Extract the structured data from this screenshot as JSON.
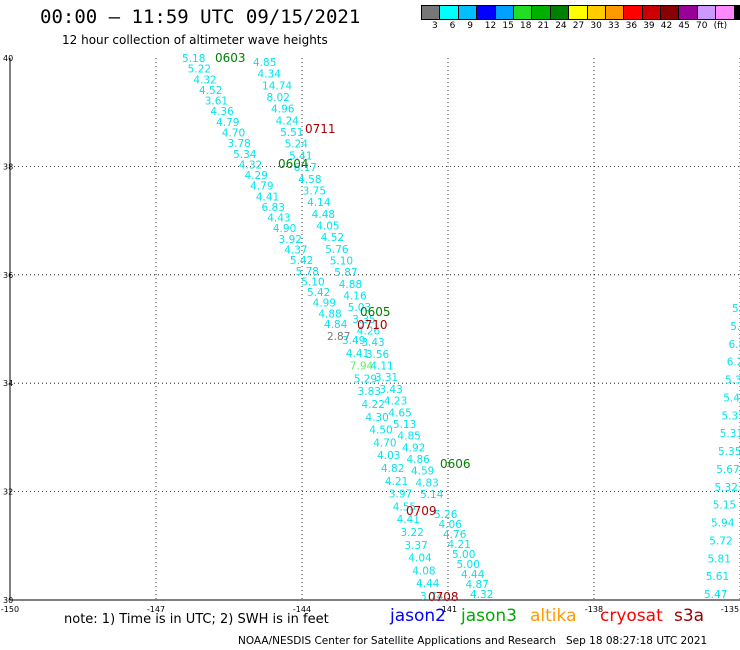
{
  "header": {
    "title": "00:00 – 11:59 UTC 09/15/2021",
    "subtitle": "12 hour collection of altimeter wave heights"
  },
  "color_scale": {
    "colors": [
      "#777777",
      "#00ffff",
      "#00bfff",
      "#0000ff",
      "#00a0ff",
      "#22dd22",
      "#00b000",
      "#008000",
      "#ffff00",
      "#ffcc00",
      "#ff9900",
      "#ff0000",
      "#cc0000",
      "#880000",
      "#990099",
      "#cc99ff",
      "#ff88ff",
      "#000000"
    ],
    "labels": [
      "3",
      "6",
      "9",
      "12",
      "15",
      "18",
      "21",
      "24",
      "27",
      "30",
      "33",
      "36",
      "39",
      "42",
      "45",
      "70",
      "(ft)"
    ]
  },
  "axes": {
    "lon_ticks": [
      "-150",
      "-147",
      "-144",
      "-141",
      "-138",
      "-135"
    ],
    "lat_ticks": [
      "40",
      "38",
      "36",
      "34",
      "32",
      "30"
    ]
  },
  "time_labels": [
    {
      "text": "0603",
      "sat": "jason3"
    },
    {
      "text": "0604",
      "sat": "jason3"
    },
    {
      "text": "0605",
      "sat": "jason3"
    },
    {
      "text": "0606",
      "sat": "jason3"
    },
    {
      "text": "0711",
      "sat": "cryosat"
    },
    {
      "text": "0710",
      "sat": "cryosat"
    },
    {
      "text": "0709",
      "sat": "cryosat"
    },
    {
      "text": "0708",
      "sat": "cryosat"
    }
  ],
  "tracks": {
    "jason3_west": [
      "5.18",
      "5.22",
      "4.32",
      "4.52",
      "3.61",
      "4.36",
      "4.79",
      "4.70",
      "3.78",
      "5.34",
      "4.32",
      "4.29",
      "4.79",
      "4.41",
      "6.83",
      "4.43",
      "4.90",
      "3.92",
      "4.37",
      "5.42",
      "5.78",
      "5.10",
      "5.42",
      "4.99",
      "4.88",
      "4.84"
    ],
    "jason3_east": [
      "3.49",
      "4.41",
      "7.94",
      "5.29",
      "3.83",
      "4.22",
      "4.30",
      "4.50",
      "4.70",
      "4.03",
      "4.82",
      "4.21",
      "3.97",
      "4.55",
      "4.41",
      "3.22",
      "3.37",
      "4.04",
      "4.08",
      "4.44",
      "3.74"
    ],
    "cryo_west": [
      "4.85",
      "4.34",
      "14.74",
      "8.02",
      "4.96",
      "4.24",
      "5.51",
      "5.24",
      "5.41",
      "6.17",
      "4.58",
      "3.75",
      "4.14",
      "4.48",
      "4.05",
      "4.52",
      "5.76",
      "5.10",
      "5.87",
      "4.88",
      "4.16",
      "5.03",
      "3.35",
      "4.26",
      "3.43",
      "3.56",
      "4.11",
      "3.31",
      "3.43",
      "4.23",
      "4.65",
      "5.13",
      "4.85",
      "4.92",
      "4.86",
      "4.59",
      "4.83",
      "5.14"
    ],
    "cryo_east": [
      "5.26",
      "4.06",
      "4.76",
      "4.21",
      "5.00",
      "5.00",
      "4.44",
      "4.87",
      "4.32"
    ],
    "grey_value": "2.87",
    "edge": [
      "5.24",
      "5.33",
      "6.81",
      "6.23",
      "5.31",
      "5.44",
      "5.37",
      "5.31",
      "5.35",
      "5.67",
      "5.32",
      "5.15",
      "5.94",
      "5.72",
      "5.81",
      "5.61",
      "5.47"
    ]
  },
  "note": "note:  1) Time is in UTC;  2) SWH is in feet",
  "legend": {
    "jason2": {
      "label": "jason2",
      "color": "#0000ff"
    },
    "jason3": {
      "label": "jason3",
      "color": "#00aa00"
    },
    "altika": {
      "label": "altika",
      "color": "#ff9900"
    },
    "cryosat": {
      "label": "cryosat",
      "color": "#ff0000"
    },
    "s3a": {
      "label": "s3a",
      "color": "#990000"
    }
  },
  "footer": "NOAA/NESDIS Center for Satellite Applications and Research   Sep 18 08:27:18 UTC 2021"
}
